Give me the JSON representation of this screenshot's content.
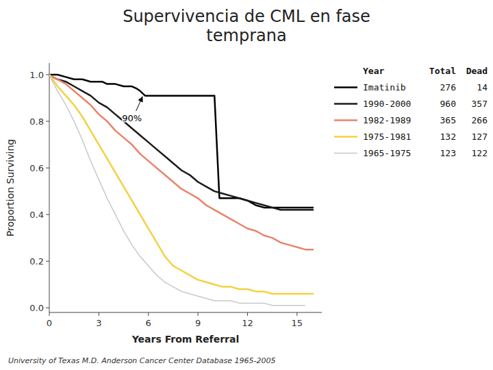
{
  "chart_data": {
    "type": "line",
    "title": "Supervivencia de CML en fase\ntemprana",
    "x_label": "Years From Referral",
    "y_label": "Proportion Surviving",
    "footnote": "University of Texas M.D. Anderson Cancer Center Database 1965-2005",
    "annotations": [
      {
        "text": "90%",
        "x": 5.0,
        "y": 0.8,
        "arrow_x": 5.65,
        "arrow_y": 0.907
      }
    ],
    "legend_header": [
      "Year",
      "Total",
      "Dead"
    ],
    "legend": "right",
    "grid": false,
    "xlim": [
      0,
      16.5
    ],
    "ylim": [
      -0.02,
      1.05
    ],
    "xticks": [
      0,
      3,
      6,
      9,
      12,
      15
    ],
    "yticks": [
      {
        "value": 0.0,
        "label": "0.0"
      },
      0.2,
      0.4,
      0.6,
      0.8,
      {
        "value": 1.0,
        "label": "1.0"
      }
    ],
    "series": [
      {
        "name": "Imatinib",
        "color": "#000000",
        "total": 276,
        "dead": 14,
        "x": [
          0,
          0.2,
          0.5,
          1.0,
          1.5,
          2.0,
          2.5,
          3.0,
          3.2,
          3.5,
          4.0,
          4.5,
          5.0,
          5.3,
          5.5,
          5.8,
          6.0,
          6.3,
          6.5,
          7.0,
          7.5,
          8.0,
          8.5,
          9.0,
          9.5,
          10.0,
          10.3,
          10.5,
          11.0,
          11.5,
          12.0,
          12.5,
          13.0,
          13.5,
          14.0,
          14.5,
          15.0,
          15.5,
          16.0
        ],
        "values": [
          1.0,
          1.0,
          1.0,
          0.99,
          0.98,
          0.98,
          0.97,
          0.97,
          0.97,
          0.96,
          0.96,
          0.95,
          0.95,
          0.94,
          0.93,
          0.91,
          0.91,
          0.91,
          0.91,
          0.91,
          0.91,
          0.91,
          0.91,
          0.91,
          0.91,
          0.91,
          0.47,
          0.47,
          0.47,
          0.47,
          0.46,
          0.44,
          0.43,
          0.43,
          0.43,
          0.43,
          0.43,
          0.43,
          0.43
        ]
      },
      {
        "name": "1990-2000",
        "color": "#1a1a1a",
        "total": 960,
        "dead": 357,
        "x": [
          0,
          0.2,
          0.5,
          1.0,
          1.5,
          2.0,
          2.5,
          3.0,
          3.5,
          4.0,
          4.5,
          5.0,
          5.5,
          6.0,
          6.5,
          7.0,
          7.5,
          8.0,
          8.5,
          9.0,
          9.5,
          10.0,
          10.5,
          11.0,
          11.5,
          12.0,
          12.5,
          13.0,
          13.5,
          14.0,
          14.5,
          15.0,
          15.5,
          16.0
        ],
        "values": [
          1.0,
          0.99,
          0.98,
          0.97,
          0.95,
          0.93,
          0.91,
          0.88,
          0.86,
          0.83,
          0.8,
          0.77,
          0.74,
          0.71,
          0.68,
          0.65,
          0.62,
          0.59,
          0.57,
          0.54,
          0.52,
          0.5,
          0.49,
          0.48,
          0.47,
          0.46,
          0.45,
          0.44,
          0.43,
          0.42,
          0.42,
          0.42,
          0.42,
          0.42
        ]
      },
      {
        "name": "1982-1989",
        "color": "#E8836A",
        "total": 365,
        "dead": 266,
        "x": [
          0,
          0.2,
          0.5,
          1.0,
          1.5,
          2.0,
          2.5,
          3.0,
          3.5,
          4.0,
          4.5,
          5.0,
          5.5,
          6.0,
          6.5,
          7.0,
          7.5,
          8.0,
          8.5,
          9.0,
          9.5,
          10.0,
          10.5,
          11.0,
          11.5,
          12.0,
          12.5,
          13.0,
          13.5,
          14.0,
          14.5,
          15.0,
          15.5,
          16.0
        ],
        "values": [
          1.0,
          0.99,
          0.98,
          0.96,
          0.93,
          0.9,
          0.87,
          0.83,
          0.8,
          0.76,
          0.73,
          0.7,
          0.66,
          0.63,
          0.6,
          0.57,
          0.54,
          0.51,
          0.49,
          0.47,
          0.44,
          0.42,
          0.4,
          0.38,
          0.36,
          0.34,
          0.33,
          0.31,
          0.3,
          0.28,
          0.27,
          0.26,
          0.25,
          0.25
        ]
      },
      {
        "name": "1975-1981",
        "color": "#F5D040",
        "total": 132,
        "dead": 127,
        "x": [
          0,
          0.2,
          0.5,
          1.0,
          1.5,
          2.0,
          2.5,
          3.0,
          3.5,
          4.0,
          4.5,
          5.0,
          5.5,
          6.0,
          6.5,
          7.0,
          7.5,
          8.0,
          8.5,
          9.0,
          9.5,
          10.0,
          10.5,
          11.0,
          11.5,
          12.0,
          12.5,
          13.0,
          13.5,
          14.0,
          14.5,
          15.0,
          15.5,
          16.0
        ],
        "values": [
          1.0,
          0.98,
          0.95,
          0.91,
          0.87,
          0.82,
          0.76,
          0.7,
          0.64,
          0.58,
          0.52,
          0.46,
          0.4,
          0.34,
          0.28,
          0.22,
          0.18,
          0.16,
          0.14,
          0.12,
          0.11,
          0.1,
          0.09,
          0.09,
          0.08,
          0.08,
          0.07,
          0.07,
          0.06,
          0.06,
          0.06,
          0.06,
          0.06,
          0.06
        ]
      },
      {
        "name": "1965-1975",
        "color": "#C8C8C8",
        "total": 123,
        "dead": 122,
        "x": [
          0,
          0.2,
          0.5,
          1.0,
          1.5,
          2.0,
          2.5,
          3.0,
          3.5,
          4.0,
          4.5,
          5.0,
          5.5,
          6.0,
          6.5,
          7.0,
          7.5,
          8.0,
          8.5,
          9.0,
          9.5,
          10.0,
          10.5,
          11.0,
          11.5,
          12.0,
          12.5,
          13.0,
          13.5,
          14.0,
          14.5,
          15.0,
          15.5
        ],
        "values": [
          1.0,
          0.97,
          0.93,
          0.87,
          0.8,
          0.72,
          0.63,
          0.55,
          0.47,
          0.4,
          0.33,
          0.27,
          0.22,
          0.18,
          0.14,
          0.11,
          0.09,
          0.07,
          0.06,
          0.05,
          0.04,
          0.03,
          0.03,
          0.03,
          0.02,
          0.02,
          0.02,
          0.02,
          0.01,
          0.01,
          0.01,
          0.01,
          0.01
        ]
      }
    ]
  }
}
